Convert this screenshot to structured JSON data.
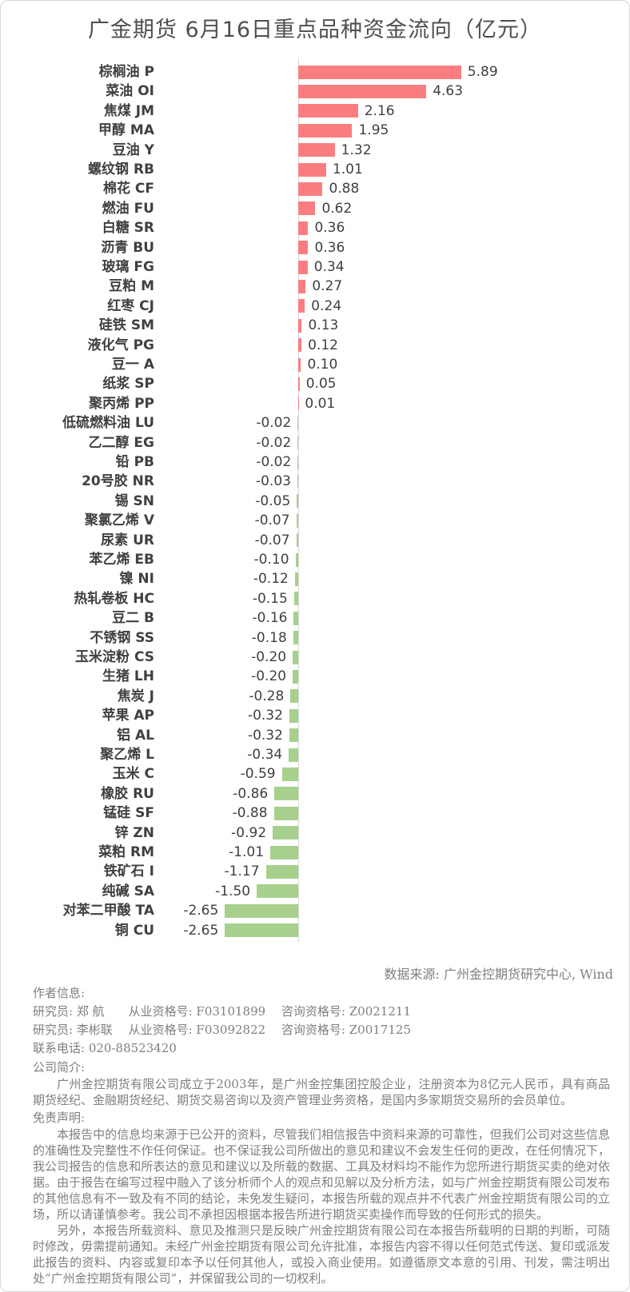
{
  "title": "广金期货 6月16日重点品种资金流向（亿元）",
  "chart_data": {
    "type": "bar",
    "orientation": "horizontal",
    "title": "广金期货 6月16日重点品种资金流向（亿元）",
    "unit": "亿元",
    "legend": "none",
    "grid": "off",
    "value_labels": "shown at bar ends, two decimals",
    "positive_color": "#FA7E80",
    "negative_color": "#A8D08D",
    "xlim": [
      -2.65,
      5.89
    ],
    "categories": [
      "棕榈油 P",
      "菜油 OI",
      "焦煤 JM",
      "甲醇 MA",
      "豆油 Y",
      "螺纹钢 RB",
      "棉花 CF",
      "燃油 FU",
      "白糖 SR",
      "沥青 BU",
      "玻璃 FG",
      "豆粕 M",
      "红枣 CJ",
      "硅铁 SM",
      "液化气 PG",
      "豆一 A",
      "纸浆 SP",
      "聚丙烯 PP",
      "低硫燃料油 LU",
      "乙二醇 EG",
      "铅 PB",
      "20号胶 NR",
      "锡 SN",
      "聚氯乙烯 V",
      "尿素 UR",
      "苯乙烯 EB",
      "镍 NI",
      "热轧卷板 HC",
      "豆二 B",
      "不锈钢 SS",
      "玉米淀粉 CS",
      "生猪 LH",
      "焦炭 J",
      "苹果 AP",
      "铝 AL",
      "聚乙烯 L",
      "玉米 C",
      "橡胶 RU",
      "锰硅 SF",
      "锌 ZN",
      "菜粕 RM",
      "铁矿石 I",
      "纯碱 SA",
      "对苯二甲酸 TA",
      "铜 CU"
    ],
    "values": [
      5.89,
      4.63,
      2.16,
      1.95,
      1.32,
      1.01,
      0.88,
      0.62,
      0.36,
      0.36,
      0.34,
      0.27,
      0.24,
      0.13,
      0.12,
      0.1,
      0.05,
      0.01,
      -0.02,
      -0.02,
      -0.02,
      -0.03,
      -0.05,
      -0.07,
      -0.07,
      -0.1,
      -0.12,
      -0.15,
      -0.16,
      -0.18,
      -0.2,
      -0.2,
      -0.28,
      -0.32,
      -0.32,
      -0.34,
      -0.59,
      -0.86,
      -0.88,
      -0.92,
      -1.01,
      -1.17,
      -1.5,
      -2.65,
      -2.65
    ]
  },
  "source_note": "数据来源: 广州金控期货研究中心, Wind",
  "footer": {
    "author_heading": "作者信息:",
    "author_lines": [
      "研究员: 郑 航　　从业资格号: F03101899　 咨询资格号: Z0021211",
      "研究员: 李彬联　 从业资格号: F03092822　 咨询资格号: Z0017125"
    ],
    "phone_line": "联系电话: 020-88523420",
    "company_heading": "公司简介:",
    "company_intro": "广州金控期货有限公司成立于2003年，是广州金控集团控股企业，注册资本为8亿元人民币，具有商品期货经纪、金融期货经纪、期货交易咨询以及资产管理业务资格，是国内多家期货交易所的会员单位。",
    "disclaimer_heading": "免责声明:",
    "disclaimer_paragraphs": [
      "本报告中的信息均来源于已公开的资料，尽管我们相信报告中资料来源的可靠性，但我们公司对这些信息的准确性及完整性不作任何保证。也不保证我公司所做出的意见和建议不会发生任何的更改，在任何情况下，我公司报告的信息和所表达的意见和建议以及所载的数据、工具及材料均不能作为您所进行期货买卖的绝对依据。由于报告在编写过程中融入了该分析师个人的观点和见解以及分析方法，如与广州金控期货有限公司发布的其他信息有不一致及有不同的结论，未免发生疑问，本报告所载的观点并不代表广州金控期货有限公司的立场，所以请谨慎参考。我公司不承担因根据本报告所进行期货买卖操作而导致的任何形式的损失。",
      "另外，本报告所载资料、意见及推测只是反映广州金控期货有限公司在本报告所载明的日期的判断，可随时修改，毋需提前通知。未经广州金控期货有限公司允许批准，本报告内容不得以任何范式传送、复印或派发此报告的资料、内容或复印本予以任何其他人，或投入商业使用。如遵循原文本意的引用、刊发，需注明出处“广州金控期货有限公司”，并保留我公司的一切权利。"
    ]
  }
}
